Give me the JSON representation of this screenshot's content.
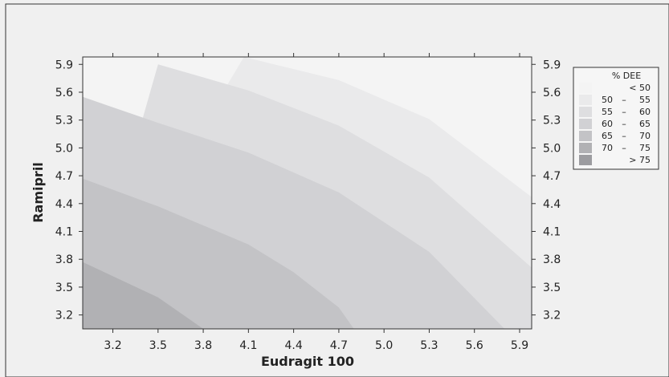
{
  "chart_data": {
    "type": "contour",
    "title": "",
    "xlabel": "Eudragit 100",
    "ylabel": "Ramipril",
    "xlim": [
      3.0,
      5.98
    ],
    "ylim": [
      3.05,
      5.98
    ],
    "x_ticks": [
      "3.2",
      "3.5",
      "3.8",
      "4.1",
      "4.4",
      "4.7",
      "5.0",
      "5.3",
      "5.6",
      "5.9"
    ],
    "y_ticks": [
      "3.2",
      "3.5",
      "3.8",
      "4.1",
      "4.4",
      "4.7",
      "5.0",
      "5.3",
      "5.6",
      "5.9"
    ],
    "z_label": "% DEE",
    "legend_position": "right",
    "levels": [
      {
        "label_lo": "",
        "dash": "",
        "label_hi": "< 50",
        "color": "#f4f4f4"
      },
      {
        "label_lo": "50",
        "dash": "–",
        "label_hi": "55",
        "color": "#eaeaeb"
      },
      {
        "label_lo": "55",
        "dash": "–",
        "label_hi": "60",
        "color": "#dedee0"
      },
      {
        "label_lo": "60",
        "dash": "–",
        "label_hi": "65",
        "color": "#d1d1d4"
      },
      {
        "label_lo": "65",
        "dash": "–",
        "label_hi": "70",
        "color": "#c3c3c6"
      },
      {
        "label_lo": "70",
        "dash": "–",
        "label_hi": "75",
        "color": "#b1b1b4"
      },
      {
        "label_lo": "",
        "dash": "",
        "label_hi": "> 75",
        "color": "#9c9ca0"
      }
    ],
    "contour_boundaries": [
      {
        "level": 75,
        "points": [
          [
            3.0,
            3.77
          ],
          [
            3.5,
            3.39
          ],
          [
            3.8,
            3.05
          ]
        ]
      },
      {
        "level": 70,
        "points": [
          [
            3.0,
            4.67
          ],
          [
            3.5,
            4.37
          ],
          [
            4.1,
            3.96
          ],
          [
            4.4,
            3.66
          ],
          [
            4.7,
            3.28
          ],
          [
            4.8,
            3.05
          ]
        ]
      },
      {
        "level": 65,
        "points": [
          [
            3.0,
            5.55
          ],
          [
            3.5,
            5.27
          ],
          [
            4.1,
            4.95
          ],
          [
            4.7,
            4.52
          ],
          [
            5.3,
            3.88
          ],
          [
            5.8,
            3.05
          ]
        ]
      },
      {
        "level": 60,
        "points": [
          [
            3.5,
            5.9
          ],
          [
            4.1,
            5.62
          ],
          [
            4.7,
            5.24
          ],
          [
            5.3,
            4.68
          ],
          [
            5.98,
            3.71
          ]
        ]
      },
      {
        "level": 55,
        "points": [
          [
            4.07,
            5.98
          ],
          [
            4.7,
            5.73
          ],
          [
            5.3,
            5.31
          ],
          [
            5.98,
            4.47
          ]
        ]
      }
    ]
  }
}
